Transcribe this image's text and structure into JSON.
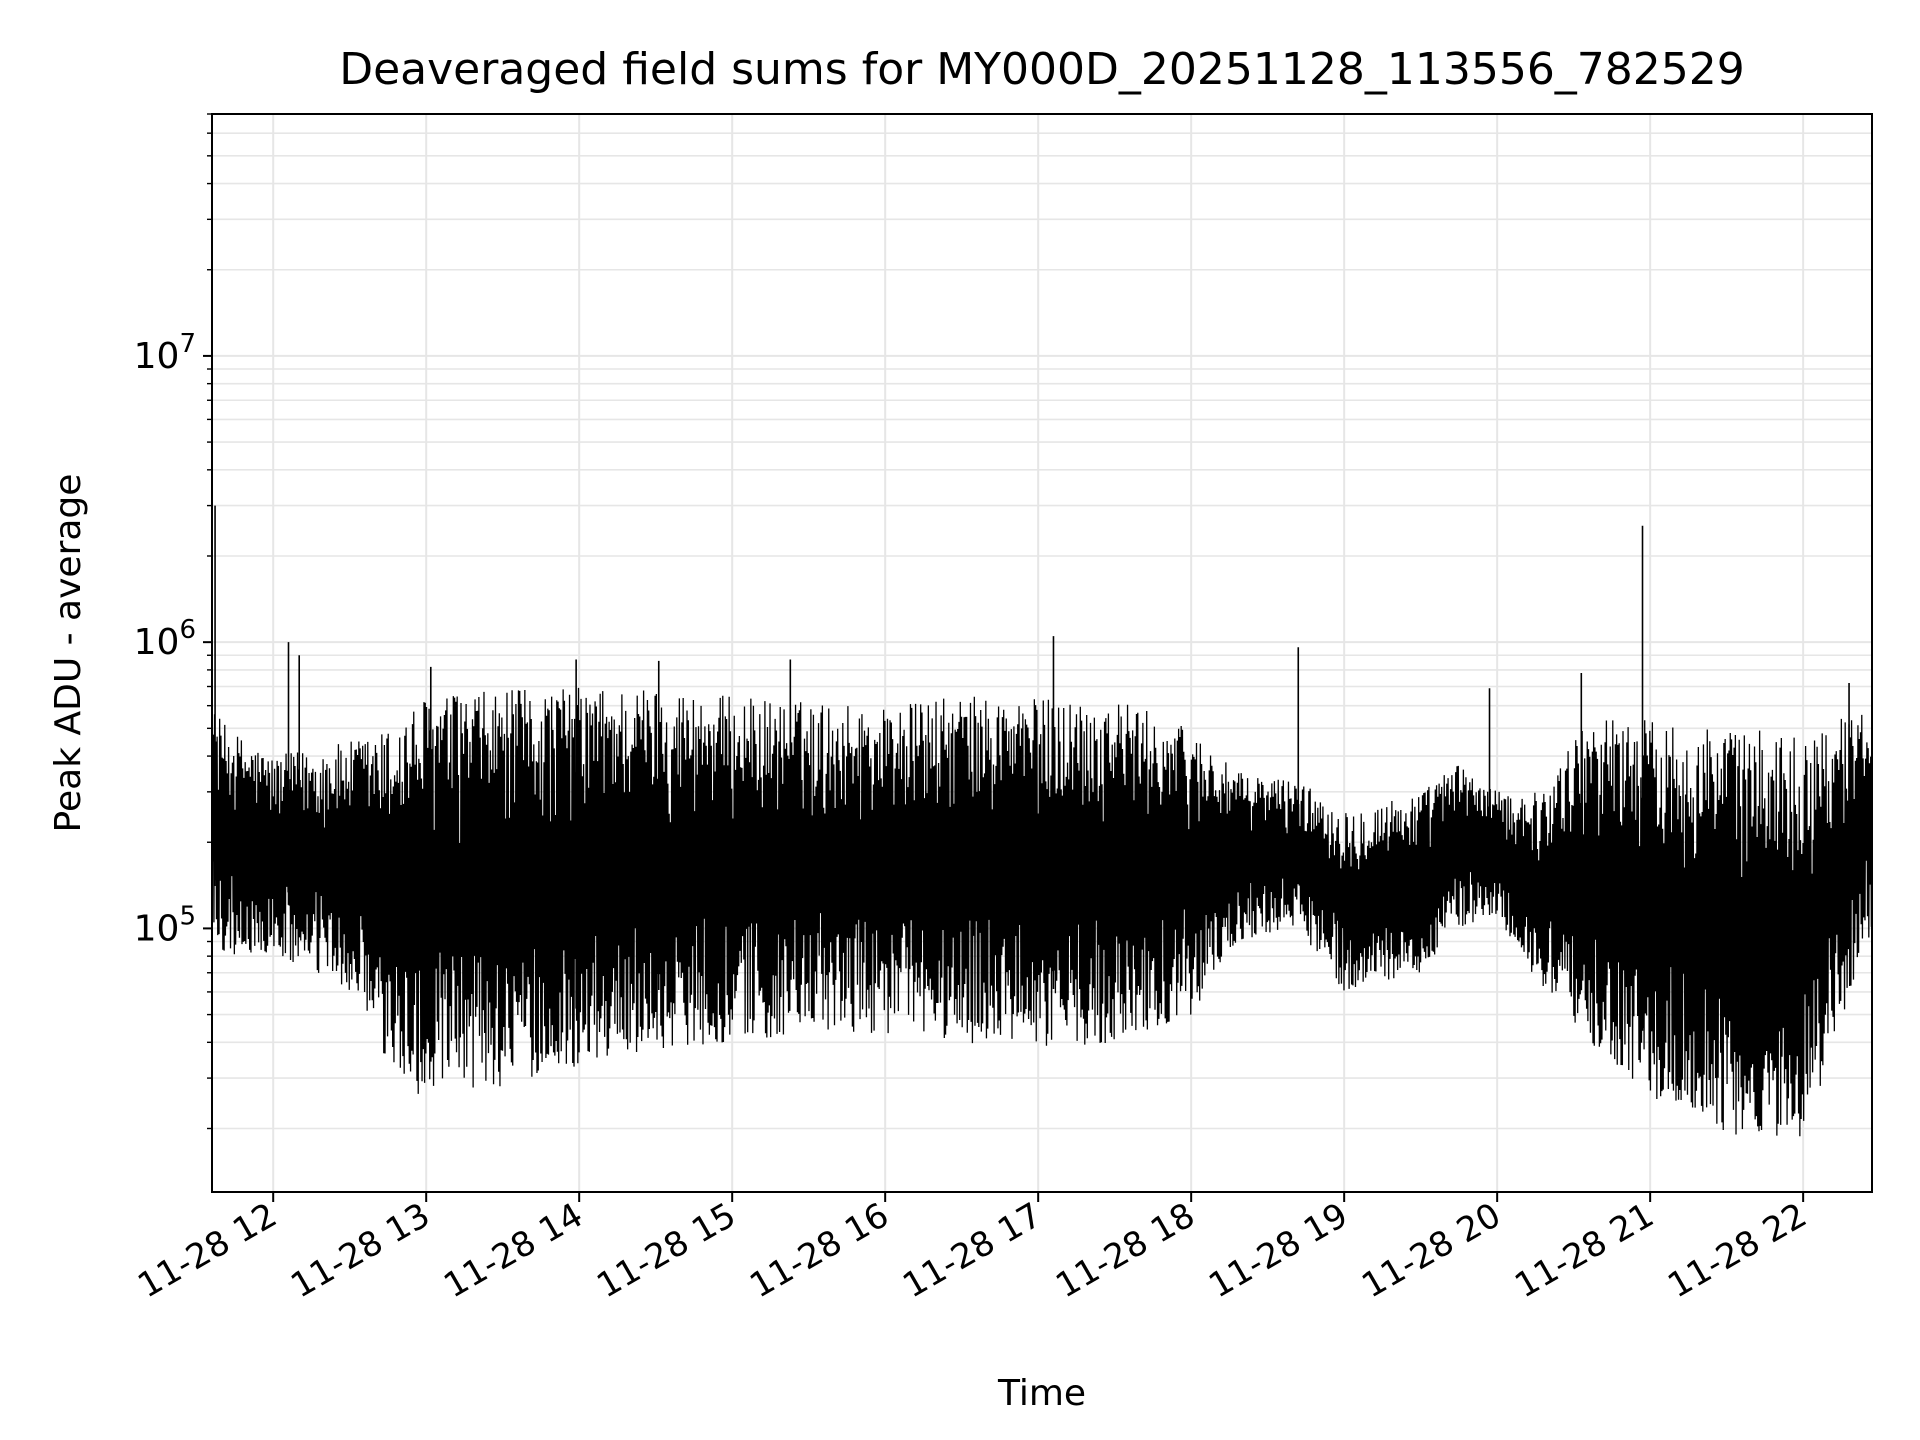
{
  "chart_data": {
    "type": "line",
    "title": "Deaveraged field sums for MY000D_20251128_113556_782529",
    "xlabel": "Time",
    "ylabel": "Peak ADU - average",
    "yscale": "log",
    "ylim": [
      12000,
      70000000
    ],
    "xlim_hours": [
      11.6,
      22.45
    ],
    "x_ticks": [
      {
        "hour": 12,
        "label": "11-28 12"
      },
      {
        "hour": 13,
        "label": "11-28 13"
      },
      {
        "hour": 14,
        "label": "11-28 14"
      },
      {
        "hour": 15,
        "label": "11-28 15"
      },
      {
        "hour": 16,
        "label": "11-28 16"
      },
      {
        "hour": 17,
        "label": "11-28 17"
      },
      {
        "hour": 18,
        "label": "11-28 18"
      },
      {
        "hour": 19,
        "label": "11-28 19"
      },
      {
        "hour": 20,
        "label": "11-28 20"
      },
      {
        "hour": 21,
        "label": "11-28 21"
      },
      {
        "hour": 22,
        "label": "11-28 22"
      }
    ],
    "y_ticks": [
      {
        "value": 100000,
        "base": "10",
        "exp": "5"
      },
      {
        "value": 1000000,
        "base": "10",
        "exp": "6"
      },
      {
        "value": 10000000,
        "base": "10",
        "exp": "7"
      }
    ],
    "grid": true,
    "series_color": "#000000",
    "series_envelope": {
      "hours": [
        11.6,
        11.7,
        12.0,
        12.5,
        12.75,
        13.0,
        13.5,
        14.0,
        14.5,
        15.0,
        15.5,
        16.0,
        16.5,
        17.0,
        17.5,
        18.0,
        18.3,
        18.7,
        19.0,
        19.5,
        19.75,
        20.0,
        20.3,
        20.6,
        21.0,
        21.5,
        22.0,
        22.45
      ],
      "low": [
        90000,
        80000,
        80000,
        60000,
        32000,
        25000,
        28000,
        33000,
        38000,
        40000,
        42000,
        43000,
        40000,
        38000,
        40000,
        50000,
        90000,
        100000,
        60000,
        70000,
        100000,
        110000,
        60000,
        40000,
        26000,
        19000,
        18000,
        100000
      ],
      "high": [
        600000,
        500000,
        400000,
        450000,
        500000,
        650000,
        680000,
        700000,
        700000,
        650000,
        620000,
        600000,
        650000,
        640000,
        640000,
        500000,
        350000,
        330000,
        260000,
        300000,
        380000,
        300000,
        300000,
        560000,
        540000,
        500000,
        480000,
        600000
      ]
    },
    "spikes": [
      {
        "hour": 11.62,
        "value": 3000000
      },
      {
        "hour": 12.1,
        "value": 1000000
      },
      {
        "hour": 12.17,
        "value": 900000
      },
      {
        "hour": 13.03,
        "value": 820000
      },
      {
        "hour": 13.98,
        "value": 870000
      },
      {
        "hour": 14.52,
        "value": 860000
      },
      {
        "hour": 15.38,
        "value": 870000
      },
      {
        "hour": 17.1,
        "value": 1050000
      },
      {
        "hour": 18.7,
        "value": 960000
      },
      {
        "hour": 19.95,
        "value": 690000
      },
      {
        "hour": 20.55,
        "value": 780000
      },
      {
        "hour": 20.95,
        "value": 2550000
      },
      {
        "hour": 22.3,
        "value": 720000
      }
    ]
  }
}
